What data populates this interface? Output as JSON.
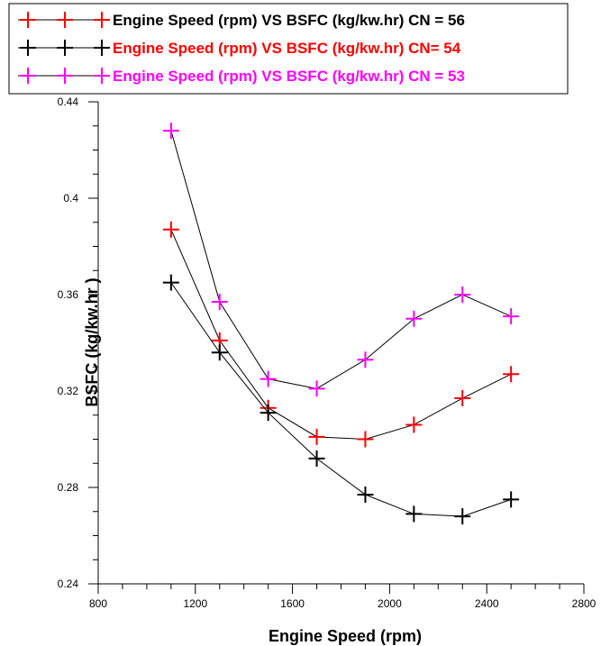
{
  "chart_data": {
    "type": "line",
    "xlabel": "Engine Speed (rpm)",
    "ylabel": "BSFC (kg/kw.hr )",
    "xlim": [
      800,
      2800
    ],
    "ylim": [
      0.24,
      0.44
    ],
    "x_ticks": [
      800,
      1200,
      1600,
      2000,
      2400,
      2800
    ],
    "x_tick_labels": [
      "800",
      "1200",
      "1600",
      "2000",
      "2400",
      "2800"
    ],
    "y_ticks": [
      0.24,
      0.28,
      0.32,
      0.36,
      0.4,
      0.44
    ],
    "y_tick_labels": [
      "0.24",
      "0.28",
      "0.32",
      "0.36",
      "0.4",
      "0.44"
    ],
    "legend_position": "top",
    "x": [
      1100,
      1300,
      1500,
      1700,
      1900,
      2100,
      2300,
      2500
    ],
    "series": [
      {
        "name": "Engine Speed (rpm) VS BSFC (kg/kw.hr) CN = 56",
        "marker_color": "#ff0000",
        "text_color": "#000000",
        "values": [
          0.387,
          0.341,
          0.313,
          0.301,
          0.3,
          0.306,
          0.317,
          0.327
        ]
      },
      {
        "name": "Engine Speed (rpm) VS BSFC (kg/kw.hr) CN= 54",
        "marker_color": "#000000",
        "text_color": "#ff0000",
        "values": [
          0.365,
          0.336,
          0.311,
          0.292,
          0.277,
          0.269,
          0.268,
          0.275
        ]
      },
      {
        "name": "Engine Speed (rpm) VS BSFC (kg/kw.hr) CN = 53",
        "marker_color": "#ff00ff",
        "text_color": "#ff00ff",
        "values": [
          0.428,
          0.357,
          0.325,
          0.321,
          0.333,
          0.35,
          0.36,
          0.351
        ]
      }
    ]
  }
}
